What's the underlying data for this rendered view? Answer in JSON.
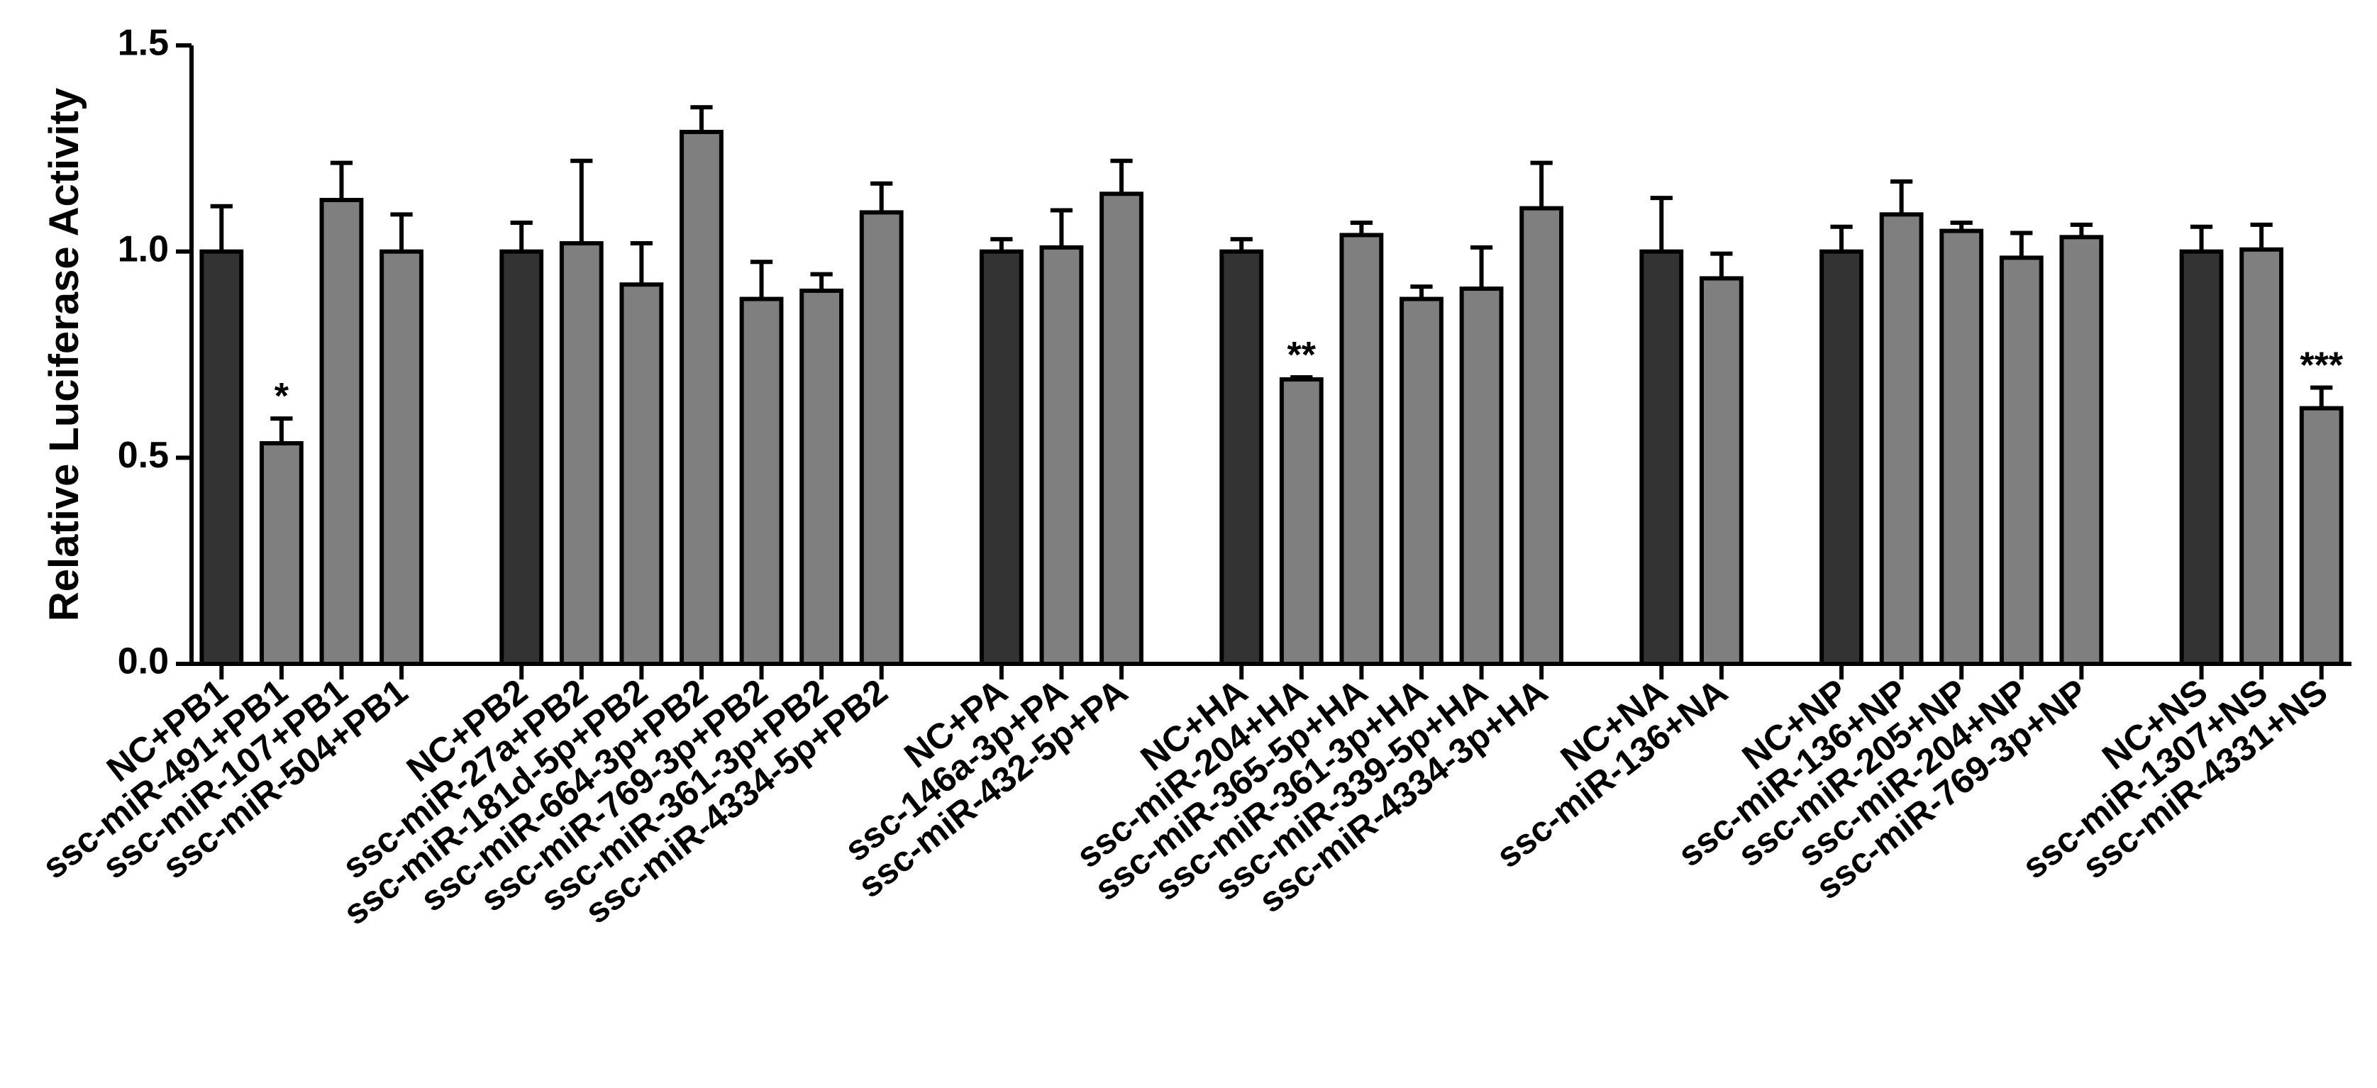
{
  "chart_data": {
    "type": "bar",
    "y_label": "Relative Luciferase Activity",
    "categories": [
      "NC+PB1",
      "ssc-miR-491+PB1",
      "ssc-miR-107+PB1",
      "ssc-miR-504+PB1",
      null,
      "NC+PB2",
      "ssc-miR-27a+PB2",
      "ssc-miR-181d-5p+PB2",
      "ssc-miR-664-3p+PB2",
      "ssc-miR-769-3p+PB2",
      "ssc-miR-361-3p+PB2",
      "ssc-miR-4334-5p+PB2",
      null,
      "NC+PA",
      "ssc-146a-3p+PA",
      "ssc-miR-432-5p+PA",
      null,
      "NC+HA",
      "ssc-miR-204+HA",
      "ssc-miR-365-5p+HA",
      "ssc-miR-361-3p+HA",
      "ssc-miR-339-5p+HA",
      "ssc-miR-4334-3p+HA",
      null,
      "NC+NA",
      "ssc-miR-136+NA",
      null,
      "NC+NP",
      "ssc-miR-136+NP",
      "ssc-miR-205+NP",
      "ssc-miR-204+NP",
      "ssc-miR-769-3p+NP",
      null,
      "NC+NS",
      "ssc-miR-1307+NS",
      "ssc-miR-4331+NS"
    ],
    "values": [
      1.0,
      0.535,
      1.125,
      1.0,
      null,
      1.0,
      1.02,
      0.92,
      1.29,
      0.885,
      0.905,
      1.095,
      null,
      1.0,
      1.01,
      1.14,
      null,
      1.0,
      0.69,
      1.04,
      0.885,
      0.91,
      1.105,
      null,
      1.0,
      0.935,
      null,
      1.0,
      1.09,
      1.05,
      0.985,
      1.035,
      null,
      1.0,
      1.005,
      0.62
    ],
    "errors": [
      0.11,
      0.06,
      0.09,
      0.09,
      null,
      0.07,
      0.2,
      0.1,
      0.06,
      0.09,
      0.04,
      0.07,
      null,
      0.03,
      0.09,
      0.08,
      null,
      0.03,
      0.005,
      0.03,
      0.03,
      0.1,
      0.11,
      null,
      0.13,
      0.06,
      null,
      0.06,
      0.08,
      0.02,
      0.06,
      0.03,
      null,
      0.06,
      0.06,
      0.05
    ],
    "significance": [
      null,
      "*",
      null,
      null,
      null,
      null,
      null,
      null,
      null,
      null,
      null,
      null,
      null,
      null,
      null,
      null,
      null,
      null,
      "**",
      null,
      null,
      null,
      null,
      null,
      null,
      null,
      null,
      null,
      null,
      null,
      null,
      null,
      null,
      null,
      null,
      "***"
    ],
    "colors": [
      "#333333",
      "#7f7f7f",
      "#7f7f7f",
      "#7f7f7f",
      null,
      "#333333",
      "#7f7f7f",
      "#7f7f7f",
      "#7f7f7f",
      "#7f7f7f",
      "#7f7f7f",
      "#7f7f7f",
      null,
      "#333333",
      "#7f7f7f",
      "#7f7f7f",
      null,
      "#333333",
      "#7f7f7f",
      "#7f7f7f",
      "#7f7f7f",
      "#7f7f7f",
      "#7f7f7f",
      null,
      "#333333",
      "#7f7f7f",
      null,
      "#333333",
      "#7f7f7f",
      "#7f7f7f",
      "#7f7f7f",
      "#7f7f7f",
      null,
      "#333333",
      "#7f7f7f",
      "#7f7f7f"
    ],
    "ylim": [
      0,
      1.5
    ],
    "yticks": [
      {
        "value": 0,
        "label": "0.0"
      },
      0.5,
      {
        "value": 1,
        "label": "1.0"
      },
      1.5
    ]
  }
}
